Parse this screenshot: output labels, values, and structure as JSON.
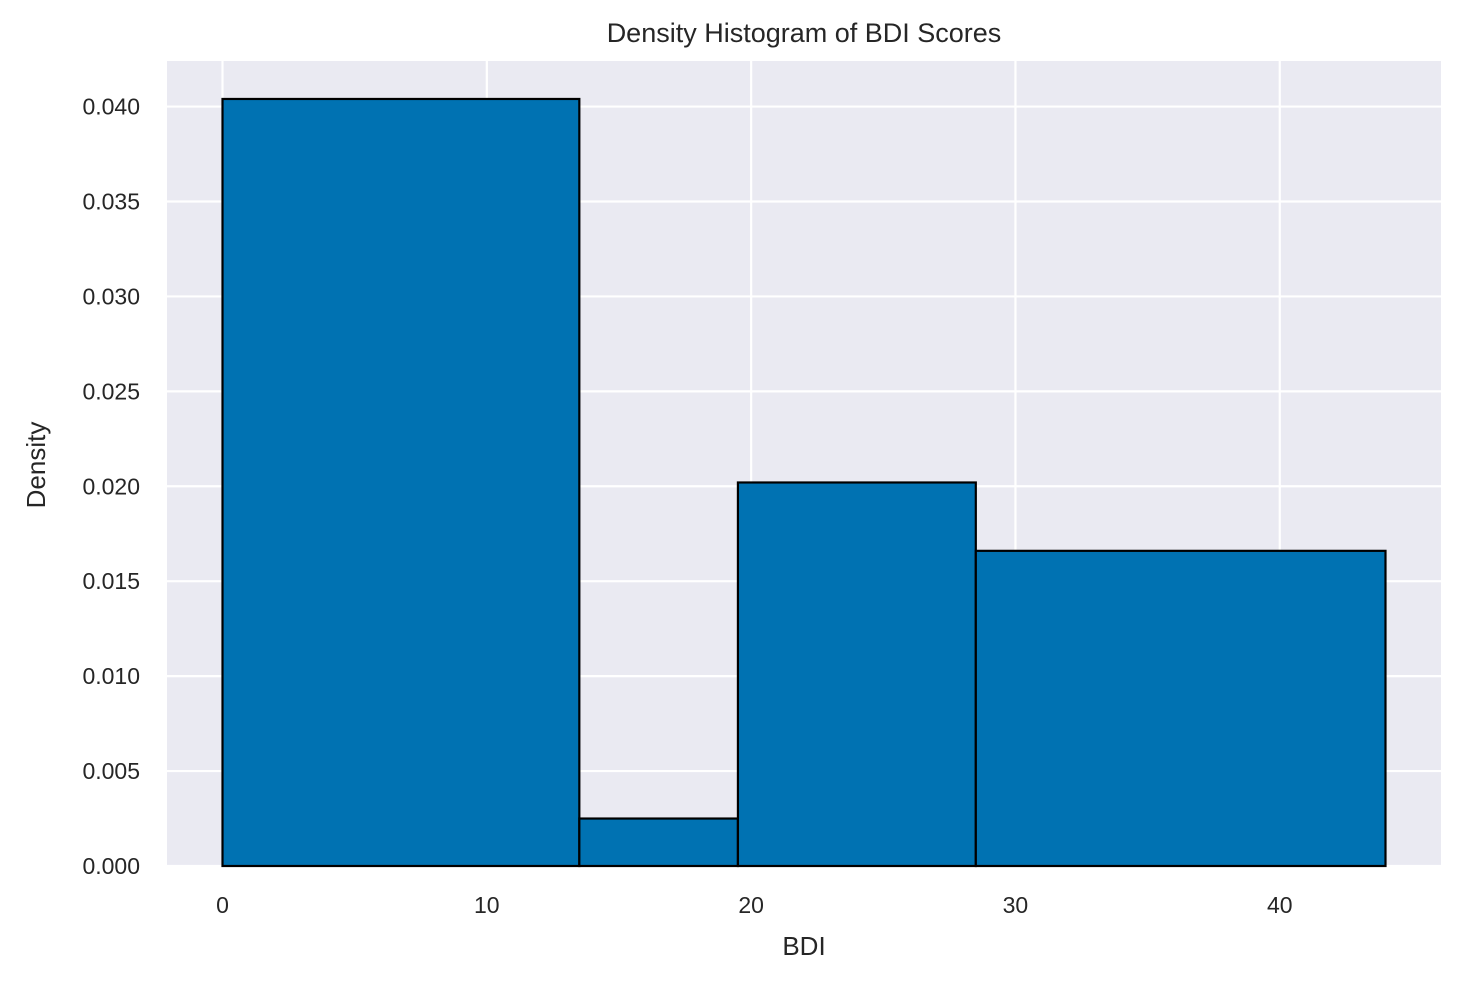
{
  "chart_data": {
    "type": "bar",
    "title": "Density Histogram of BDI Scores",
    "xlabel": "BDI",
    "ylabel": "Density",
    "bins": [
      {
        "x0": 0,
        "x1": 13.5,
        "density": 0.0404
      },
      {
        "x0": 13.5,
        "x1": 19.5,
        "density": 0.0025
      },
      {
        "x0": 19.5,
        "x1": 28.5,
        "density": 0.0202
      },
      {
        "x0": 28.5,
        "x1": 44,
        "density": 0.0166
      }
    ],
    "xlim": [
      -2.1,
      46.1
    ],
    "ylim": [
      0,
      0.0424
    ],
    "xticks": [
      0,
      10,
      20,
      30,
      40
    ],
    "xtick_labels": [
      "0",
      "10",
      "20",
      "30",
      "40"
    ],
    "yticks": [
      0,
      0.005,
      0.01,
      0.015,
      0.02,
      0.025,
      0.03,
      0.035,
      0.04
    ],
    "ytick_labels": [
      "0.000",
      "0.005",
      "0.010",
      "0.015",
      "0.020",
      "0.025",
      "0.030",
      "0.035",
      "0.040"
    ],
    "grid": true,
    "colors": {
      "bar_fill": "#0072b2",
      "bar_edge": "#000000",
      "plot_background": "#eaeaf2",
      "grid": "#ffffff"
    }
  }
}
